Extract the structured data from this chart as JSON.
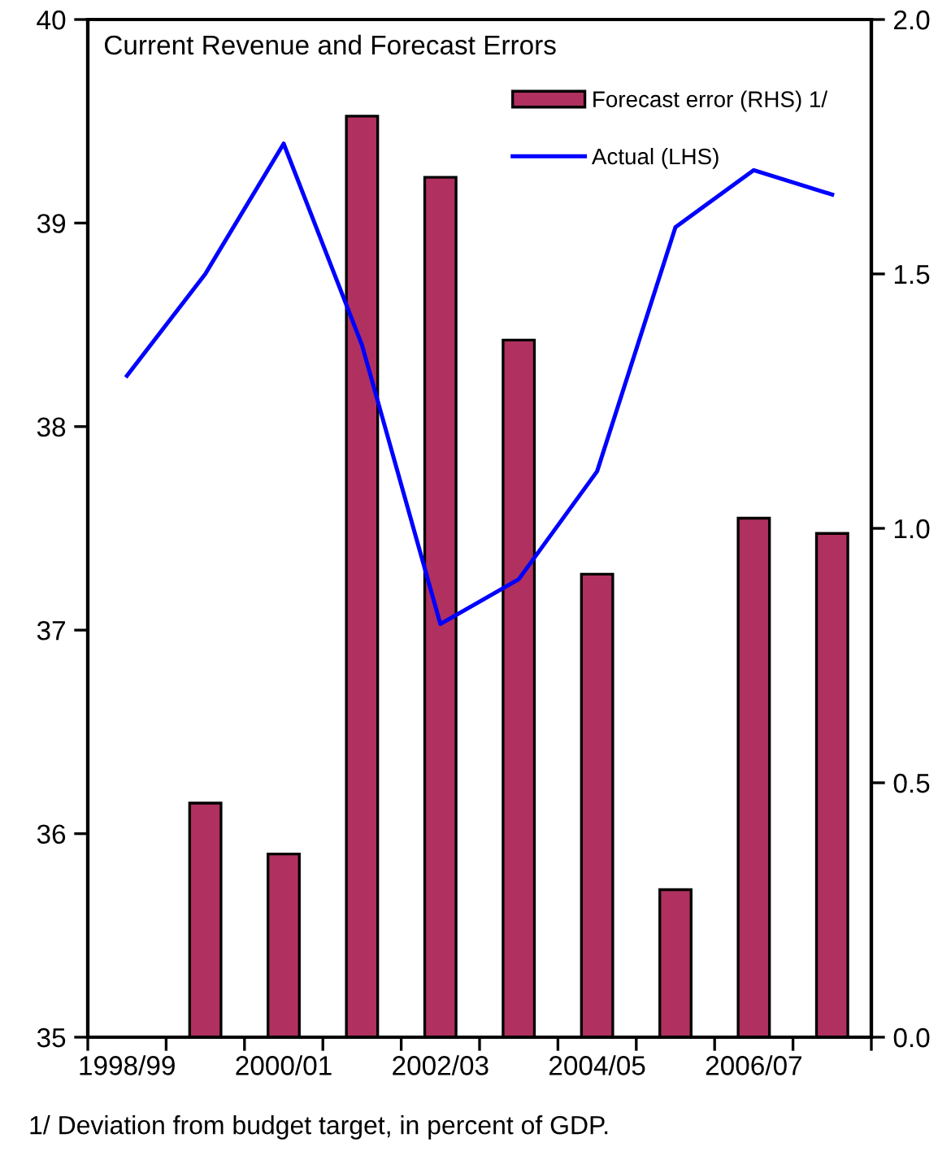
{
  "chart_data": {
    "type": "bar",
    "title": "Current Revenue and Forecast Errors",
    "categories": [
      "1998/99",
      null,
      "2000/01",
      null,
      "2002/03",
      null,
      "2004/05",
      null,
      "2006/07",
      null
    ],
    "series": [
      {
        "name": "Forecast error (RHS) 1/",
        "axis": "y2",
        "color": "#b03060",
        "values": [
          null,
          0.46,
          0.36,
          1.81,
          1.69,
          1.37,
          0.91,
          0.29,
          1.02,
          0.99
        ]
      },
      {
        "name": "Actual (LHS)",
        "type": "line",
        "color": "#0000ff",
        "values": [
          38.25,
          38.75,
          39.39,
          38.4,
          37.03,
          37.25,
          37.78,
          38.98,
          39.26,
          39.14
        ]
      }
    ],
    "ylim": [
      35,
      40
    ],
    "yticks": [
      35,
      36,
      37,
      38,
      39,
      40
    ],
    "y2lim": [
      0,
      2
    ],
    "y2ticks": [
      {
        "value": 0,
        "label": "0.0"
      },
      {
        "value": 0.5,
        "label": "0.5"
      },
      {
        "value": 1,
        "label": "1.0"
      },
      {
        "value": 1.5,
        "label": "1.5"
      },
      {
        "value": 2,
        "label": "2.0"
      }
    ],
    "legend": "top right",
    "grid": false,
    "marker": "none",
    "line_style": "solid",
    "annotations": [
      "1/ Deviation from budget target, in percent of GDP."
    ]
  }
}
